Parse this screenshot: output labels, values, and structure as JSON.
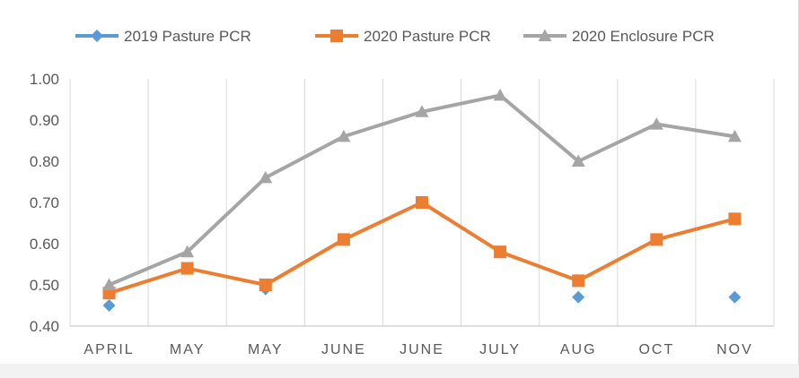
{
  "chart_data": {
    "type": "line",
    "title": "",
    "xlabel": "",
    "ylabel": "",
    "categories": [
      "APRIL",
      "MAY",
      "MAY",
      "JUNE",
      "JUNE",
      "JULY",
      "AUG",
      "OCT",
      "NOV"
    ],
    "ylim": [
      0.4,
      1.0
    ],
    "yticks": [
      "0.40",
      "0.50",
      "0.60",
      "0.70",
      "0.80",
      "0.90",
      "1.00"
    ],
    "grid": "vertical",
    "legend_position": "top",
    "series": [
      {
        "name": "2019 Pasture PCR",
        "color": "#5b9bd5",
        "marker": "diamond",
        "line": false,
        "values": [
          0.45,
          null,
          0.49,
          null,
          null,
          null,
          0.47,
          null,
          0.47
        ]
      },
      {
        "name": "2020 Pasture PCR",
        "color": "#ed7d31",
        "marker": "square",
        "line": true,
        "values": [
          0.48,
          0.54,
          0.5,
          0.61,
          0.7,
          0.58,
          0.51,
          0.61,
          0.66
        ]
      },
      {
        "name": "2020 Enclosure PCR",
        "color": "#a5a5a5",
        "marker": "triangle",
        "line": true,
        "values": [
          0.5,
          0.58,
          0.76,
          0.86,
          0.92,
          0.96,
          0.8,
          0.89,
          0.86
        ]
      }
    ]
  }
}
